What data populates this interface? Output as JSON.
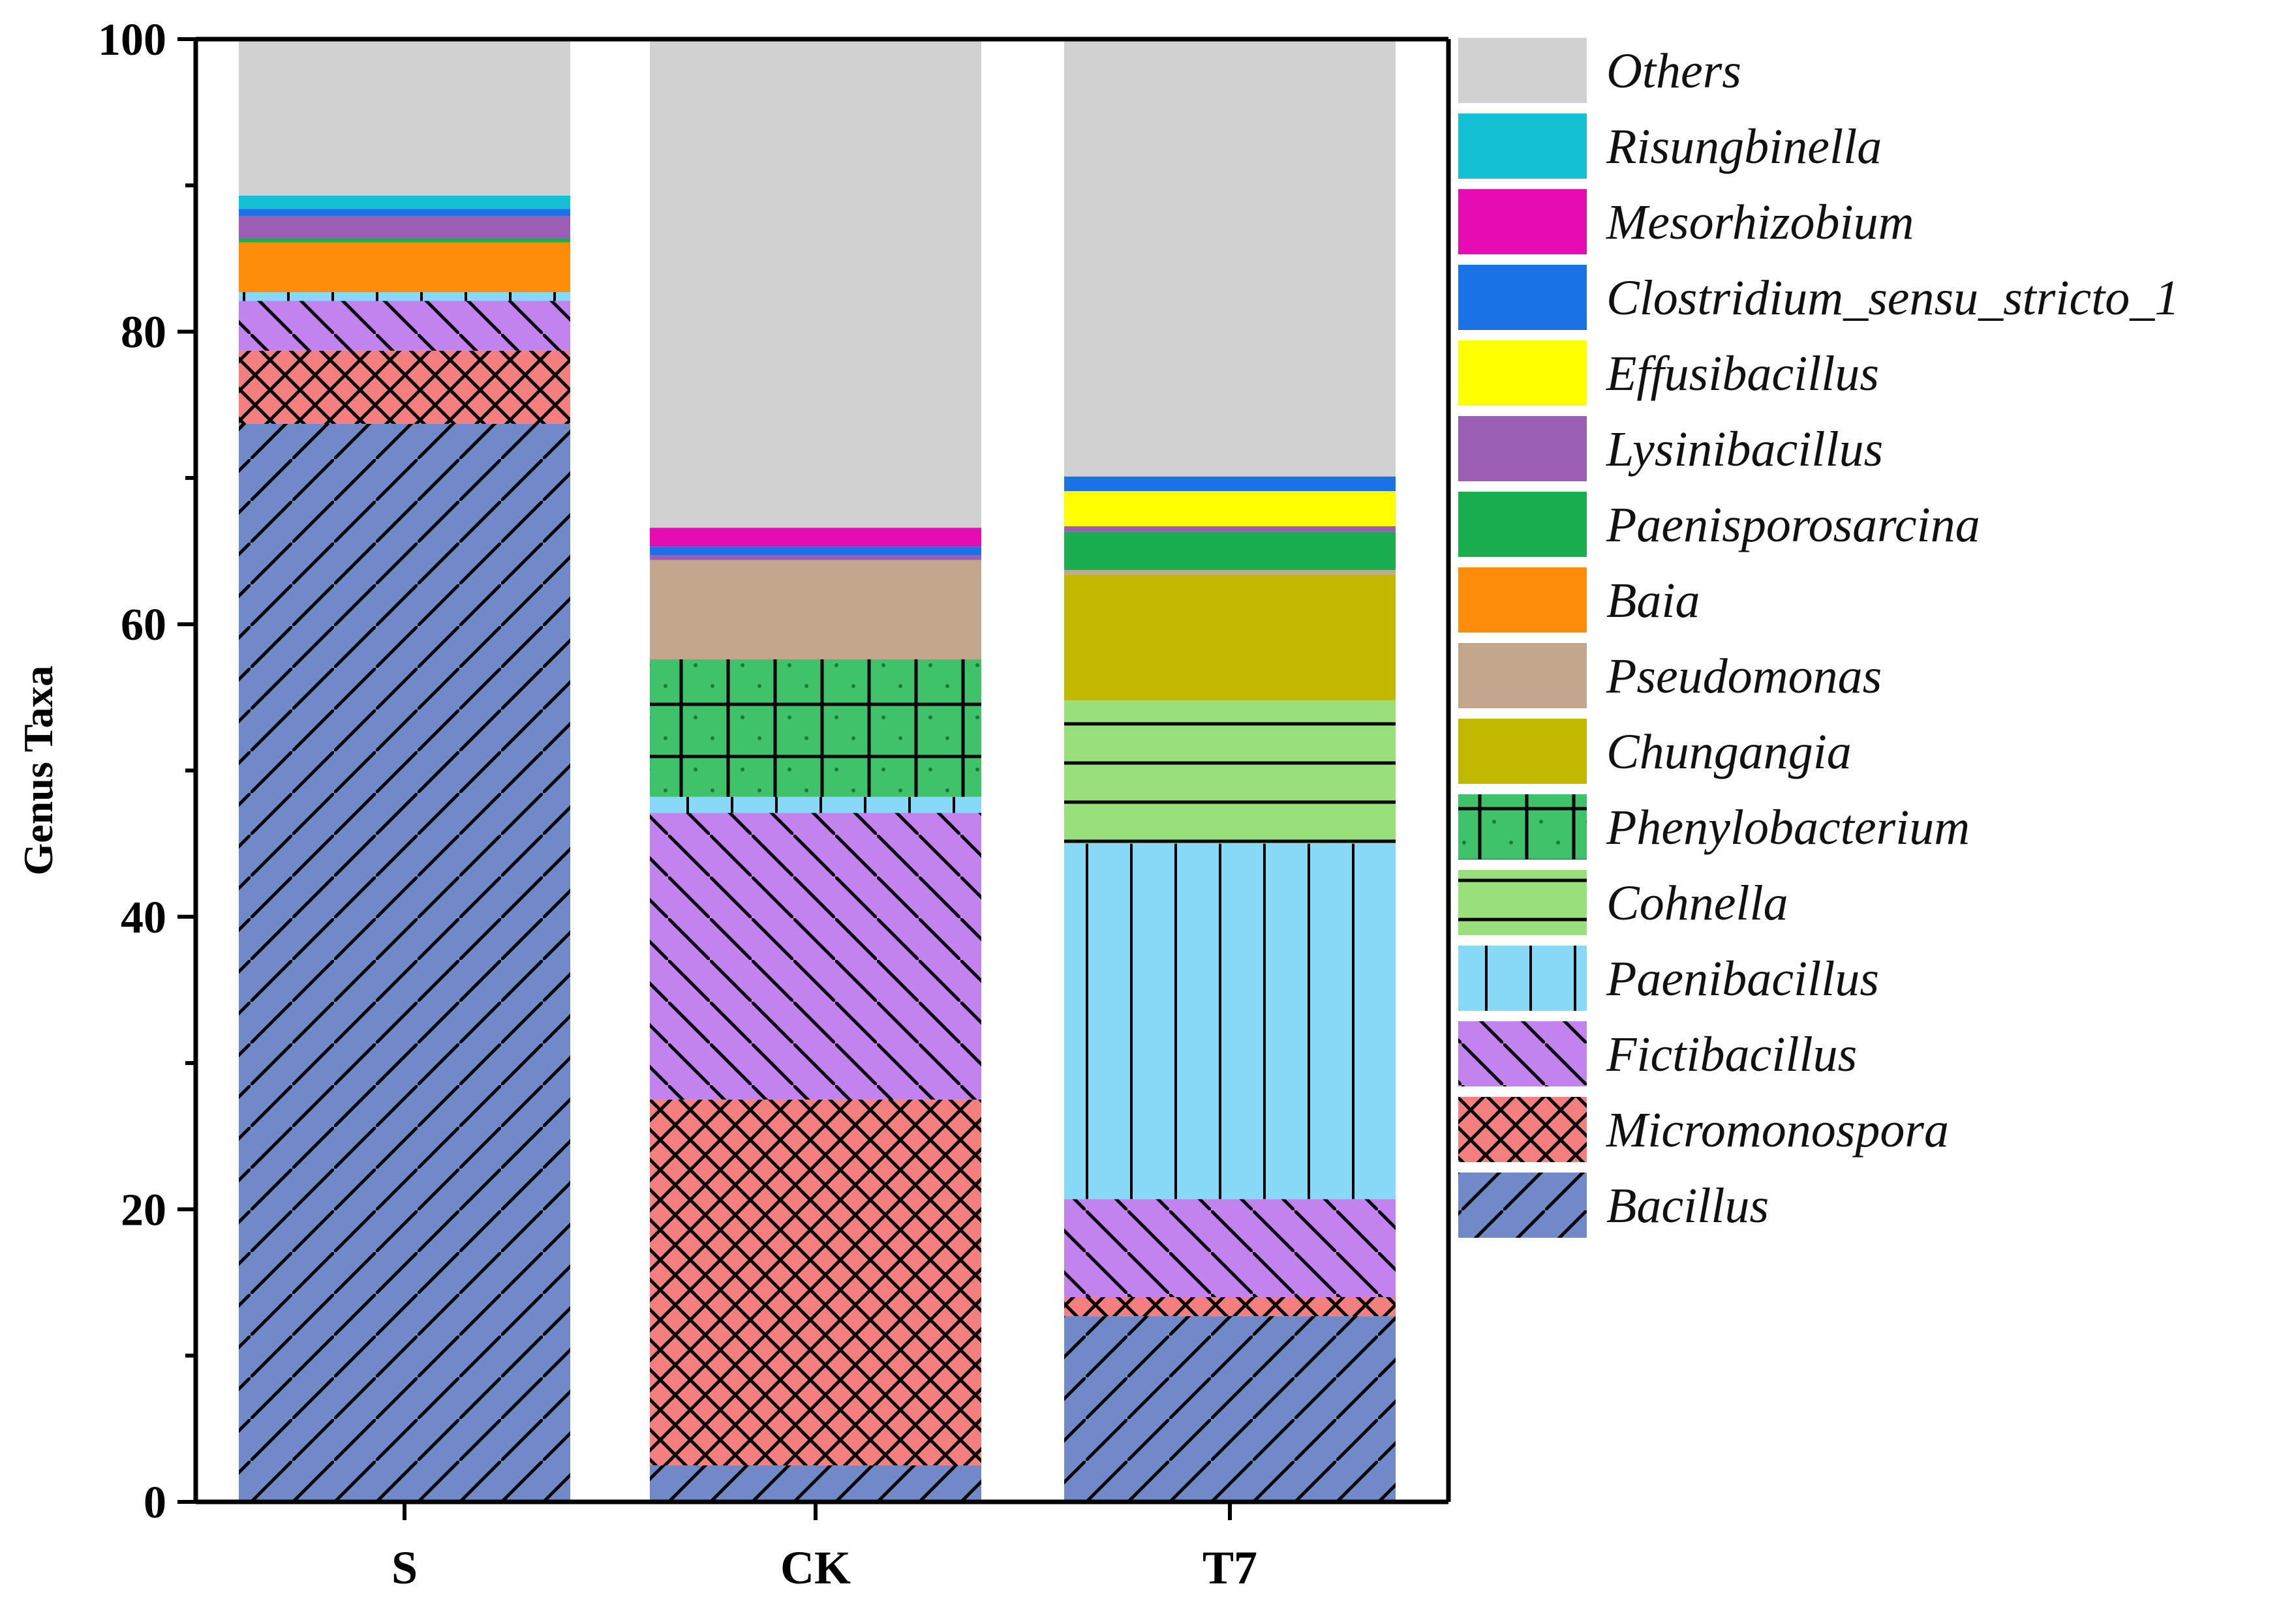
{
  "chart_data": {
    "type": "bar",
    "stacked": true,
    "title": "",
    "xlabel": "",
    "ylabel": "Genus Taxa",
    "ylim": [
      0,
      100
    ],
    "yticks": [
      0,
      20,
      40,
      60,
      80,
      100
    ],
    "grid": false,
    "legend_position": "right",
    "categories": [
      "S",
      "CK",
      "T7"
    ],
    "series": [
      {
        "name": "Bacillus",
        "color": "#7189C8",
        "pattern": "diag-up",
        "values": [
          73.7,
          2.5,
          12.7
        ]
      },
      {
        "name": "Micromonospora",
        "color": "#F47F7F",
        "pattern": "crosshatch",
        "values": [
          5.0,
          25.0,
          1.3
        ]
      },
      {
        "name": "Fictibacillus",
        "color": "#C283EF",
        "pattern": "diag-down",
        "values": [
          3.4,
          19.6,
          6.7
        ]
      },
      {
        "name": "Paenibacillus",
        "color": "#88D9F7",
        "pattern": "vertical",
        "values": [
          0.6,
          1.1,
          24.3
        ]
      },
      {
        "name": "Cohnella",
        "color": "#99E07C",
        "pattern": "horizontal",
        "values": [
          0,
          0,
          9.8
        ]
      },
      {
        "name": "Phenylobacterium",
        "color": "#3FC36A",
        "pattern": "grid",
        "values": [
          0,
          9.4,
          0
        ]
      },
      {
        "name": "Chungangia",
        "color": "#C2B800",
        "pattern": "none",
        "values": [
          0,
          0,
          8.6
        ]
      },
      {
        "name": "Pseudomonas",
        "color": "#C3A78C",
        "pattern": "none",
        "values": [
          0,
          6.8,
          0.3
        ]
      },
      {
        "name": "Baia",
        "color": "#FF8C0A",
        "pattern": "none",
        "values": [
          3.4,
          0,
          0
        ]
      },
      {
        "name": "Paenisporosarcina",
        "color": "#1BAE4E",
        "pattern": "none",
        "values": [
          0.3,
          0,
          2.6
        ]
      },
      {
        "name": "Lysinibacillus",
        "color": "#9B5EB4",
        "pattern": "none",
        "values": [
          1.5,
          0.3,
          0.4
        ]
      },
      {
        "name": "Effusibacillus",
        "color": "#FFFF00",
        "pattern": "none",
        "values": [
          0,
          0,
          2.4
        ]
      },
      {
        "name": "Clostridium_sensu_stricto_1",
        "color": "#1A72E6",
        "pattern": "none",
        "values": [
          0.5,
          0.6,
          1.0
        ]
      },
      {
        "name": "Mesorhizobium",
        "color": "#E60BB2",
        "pattern": "none",
        "values": [
          0,
          1.3,
          0
        ]
      },
      {
        "name": "Risungbinella",
        "color": "#14C0D4",
        "pattern": "none",
        "values": [
          0.9,
          0,
          0
        ]
      },
      {
        "name": "Others",
        "color": "#D1D1D1",
        "pattern": "none",
        "values": [
          10.7,
          33.4,
          29.8
        ]
      }
    ]
  }
}
